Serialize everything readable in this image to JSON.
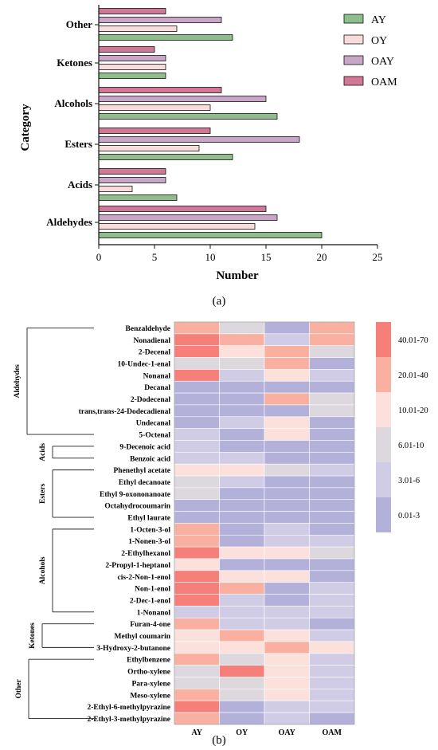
{
  "panel_a_label": "(a)",
  "panel_b_label": "(b)",
  "colors": {
    "AY": "#8fbe8c",
    "OY": "#f8dcdc",
    "OAY": "#c9a6c8",
    "OAM": "#d07896"
  },
  "chart_data": [
    {
      "type": "bar",
      "orientation": "horizontal",
      "categories": [
        "Aldehydes",
        "Acids",
        "Esters",
        "Alcohols",
        "Ketones",
        "Other"
      ],
      "series": [
        {
          "name": "AY",
          "values": [
            20,
            7,
            12,
            16,
            6,
            12
          ]
        },
        {
          "name": "OY",
          "values": [
            14,
            3,
            9,
            10,
            6,
            7
          ]
        },
        {
          "name": "OAY",
          "values": [
            16,
            6,
            18,
            15,
            6,
            11
          ]
        },
        {
          "name": "OAM",
          "values": [
            15,
            6,
            10,
            11,
            5,
            6
          ]
        }
      ],
      "xlabel": "Number",
      "ylabel": "Category",
      "xlim": [
        0,
        25
      ],
      "xticks": [
        "0",
        "5",
        "10",
        "15",
        "20",
        "25"
      ],
      "legend_position": "top-right",
      "grid": false
    },
    {
      "type": "heatmap",
      "columns": [
        "AY",
        "OY",
        "OAY",
        "OAM"
      ],
      "rows": [
        "Benzaldehyde",
        "Nonadienal",
        "2-Decenal",
        "10-Undec-1-enal",
        "Nonanal",
        "Decanal",
        "2-Dodecenal",
        "trans,trans-24-Dodecadienal",
        "Undecanal",
        "5-Octenal",
        "9-Decenoic acid",
        "Benzoic acid",
        "Phenethyl acetate",
        "Ethyl decanoate",
        "Ethyl 9-oxononanoate",
        "Octahydrocoumarin",
        "Ethyl laurate",
        "1-Octen-3-ol",
        "1-Nonen-3-ol",
        "2-Ethylhexanol",
        "2-Propyl-1-heptanol",
        "cis-2-Non-1-enol",
        "Non-1-enol",
        "2-Dec-1-enol",
        "1-Nonanol",
        "Furan-4-one",
        "Methyl coumarin",
        "3-Hydroxy-2-butanone",
        "Ethylbenzene",
        "Ortho-xylene",
        "Para-xylene",
        "Meso-xylene",
        "2-Ethyl-6-methylpyrazine",
        "2-Ethyl-3-methylpyrazine"
      ],
      "groups": [
        {
          "name": "Aldehydes",
          "start": 0,
          "end": 9
        },
        {
          "name": "Acids",
          "start": 10,
          "end": 11
        },
        {
          "name": "Esters",
          "start": 12,
          "end": 16
        },
        {
          "name": "Alcohols",
          "start": 17,
          "end": 24
        },
        {
          "name": "Ketones",
          "start": 25,
          "end": 27
        },
        {
          "name": "Other",
          "start": 28,
          "end": 33
        }
      ],
      "legend_bins": [
        {
          "label": "40.01-70",
          "color": "#f77f7a"
        },
        {
          "label": "20.01-40",
          "color": "#f9b0a0"
        },
        {
          "label": "10.01-20",
          "color": "#fbe0dc"
        },
        {
          "label": "6.01-10",
          "color": "#dcd8de"
        },
        {
          "label": "3.01-6",
          "color": "#d0cce6"
        },
        {
          "label": "0.01-3",
          "color": "#b3b0d9"
        }
      ],
      "cells": [
        [
          1,
          3,
          5,
          1
        ],
        [
          0,
          1,
          4,
          1
        ],
        [
          0,
          2,
          1,
          3
        ],
        [
          3,
          3,
          1,
          5
        ],
        [
          0,
          4,
          2,
          4
        ],
        [
          5,
          5,
          5,
          5
        ],
        [
          5,
          5,
          1,
          3
        ],
        [
          5,
          5,
          5,
          3
        ],
        [
          5,
          4,
          2,
          5
        ],
        [
          4,
          5,
          2,
          5
        ],
        [
          4,
          5,
          5,
          5
        ],
        [
          4,
          4,
          5,
          5
        ],
        [
          2,
          2,
          3,
          4
        ],
        [
          3,
          4,
          5,
          5
        ],
        [
          3,
          5,
          5,
          5
        ],
        [
          5,
          5,
          5,
          5
        ],
        [
          5,
          5,
          5,
          5
        ],
        [
          1,
          5,
          4,
          5
        ],
        [
          1,
          5,
          4,
          4
        ],
        [
          0,
          2,
          2,
          3
        ],
        [
          2,
          5,
          5,
          5
        ],
        [
          0,
          2,
          2,
          5
        ],
        [
          0,
          1,
          5,
          4
        ],
        [
          0,
          4,
          5,
          4
        ],
        [
          4,
          4,
          4,
          4
        ],
        [
          1,
          4,
          4,
          5
        ],
        [
          2,
          1,
          2,
          4
        ],
        [
          2,
          2,
          1,
          2
        ],
        [
          1,
          3,
          2,
          4
        ],
        [
          3,
          0,
          2,
          4
        ],
        [
          3,
          3,
          2,
          4
        ],
        [
          1,
          3,
          2,
          4
        ],
        [
          0,
          5,
          4,
          4
        ],
        [
          1,
          5,
          4,
          5
        ]
      ]
    }
  ]
}
